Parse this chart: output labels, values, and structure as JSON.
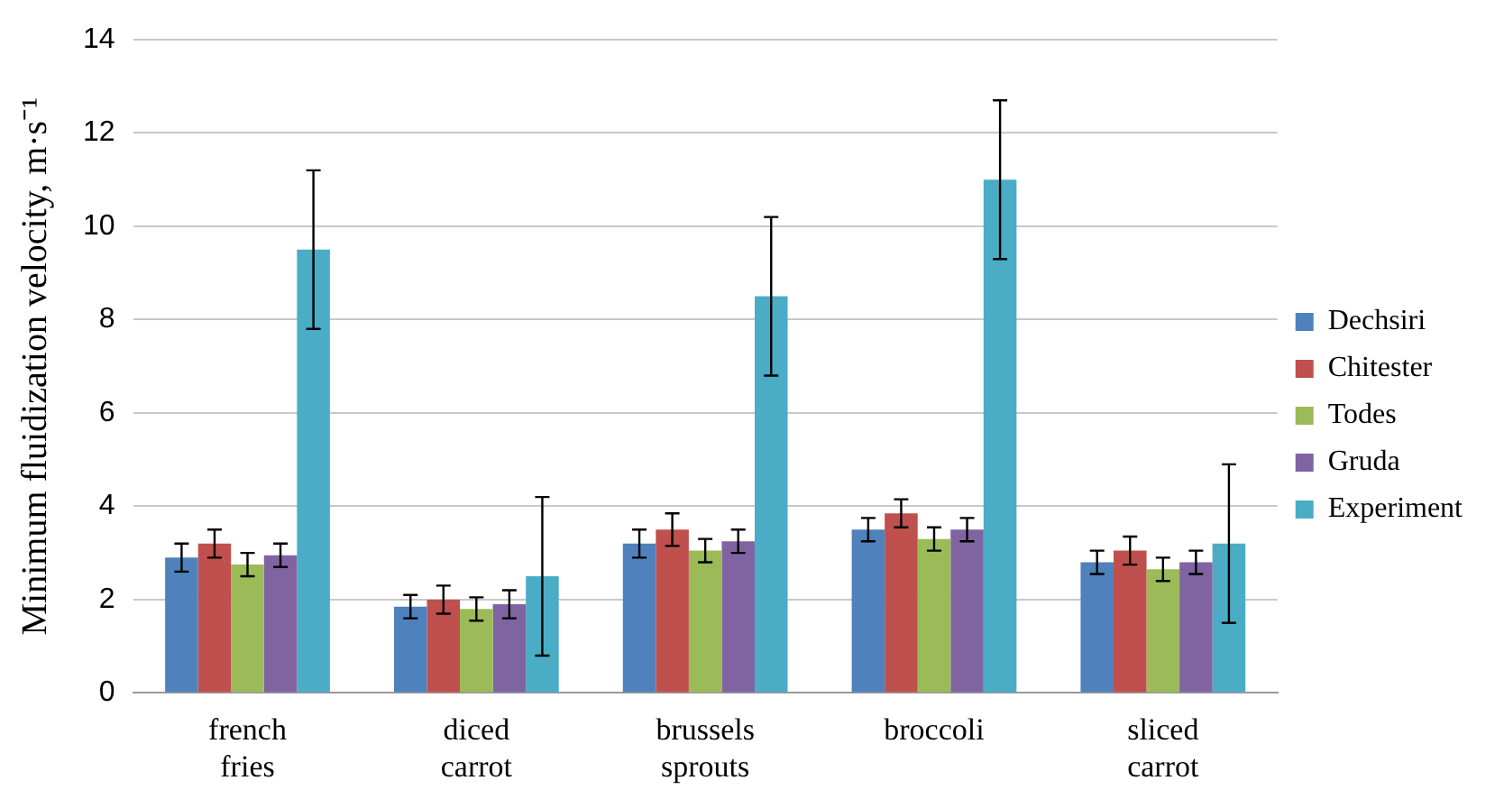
{
  "chart_data": {
    "type": "bar",
    "ylabel": "Minimum fluidization velocity, m·s⁻¹",
    "categories": [
      "french fries",
      "diced carrot",
      "brussels sprouts",
      "broccoli",
      "sliced carrot"
    ],
    "series": [
      {
        "name": "Dechsiri",
        "color": "#4f81bd",
        "values": [
          2.9,
          1.85,
          3.2,
          3.5,
          2.8
        ],
        "errors": [
          0.3,
          0.25,
          0.3,
          0.25,
          0.25
        ]
      },
      {
        "name": "Chitester",
        "color": "#c0504d",
        "values": [
          3.2,
          2.0,
          3.5,
          3.85,
          3.05
        ],
        "errors": [
          0.3,
          0.3,
          0.35,
          0.3,
          0.3
        ]
      },
      {
        "name": "Todes",
        "color": "#9bbb59",
        "values": [
          2.75,
          1.8,
          3.05,
          3.3,
          2.65
        ],
        "errors": [
          0.25,
          0.25,
          0.25,
          0.25,
          0.25
        ]
      },
      {
        "name": "Gruda",
        "color": "#8064a2",
        "values": [
          2.95,
          1.9,
          3.25,
          3.5,
          2.8
        ],
        "errors": [
          0.25,
          0.3,
          0.25,
          0.25,
          0.25
        ]
      },
      {
        "name": "Experiment",
        "color": "#4bacc6",
        "values": [
          9.5,
          2.5,
          8.5,
          11.0,
          3.2
        ],
        "errors": [
          1.7,
          1.7,
          1.7,
          1.7,
          1.7
        ]
      }
    ],
    "ylim": [
      0,
      14
    ],
    "yticks": [
      0,
      2,
      4,
      6,
      8,
      10,
      12,
      14
    ],
    "grid": "y",
    "legend": "right"
  }
}
